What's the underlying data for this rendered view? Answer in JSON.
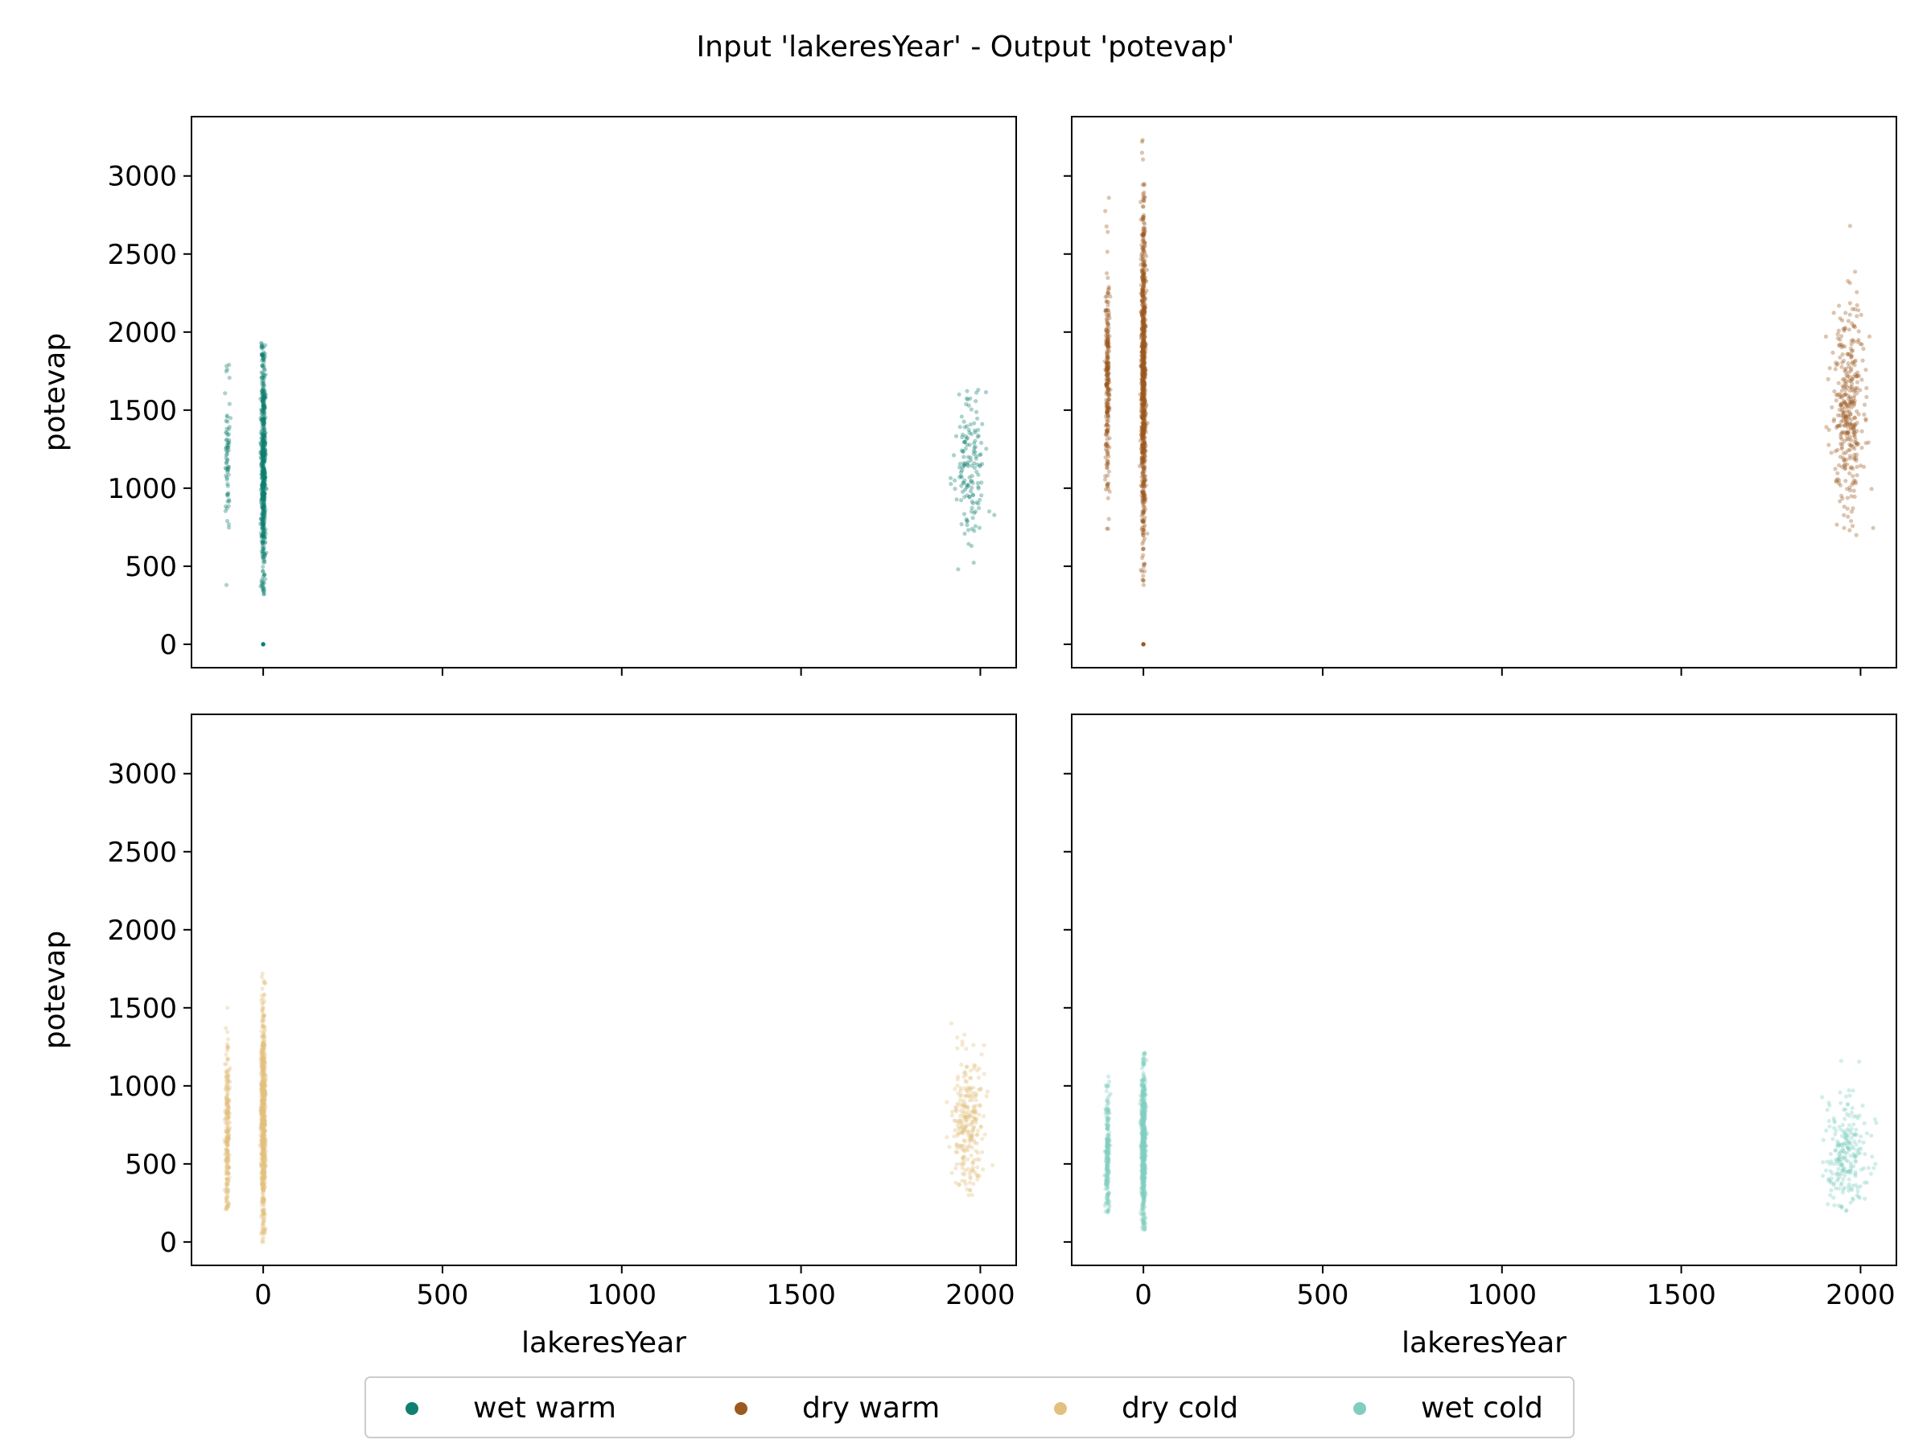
{
  "figure": {
    "title": "Input 'lakeresYear' - Output 'potevap'"
  },
  "chart_data": {
    "type": "scatter",
    "title": "Input 'lakeresYear' - Output 'potevap'",
    "xlabel": "lakeresYear",
    "ylabel": "potevap",
    "xlim": [
      -200,
      2100
    ],
    "ylim": [
      -150,
      3380
    ],
    "x_ticks": [
      0,
      500,
      1000,
      1500,
      2000
    ],
    "y_ticks": [
      0,
      500,
      1000,
      1500,
      2000,
      2500,
      3000
    ],
    "shared_x": true,
    "shared_y": true,
    "legend_position": "bottom-center",
    "panels": [
      {
        "series": "wet warm",
        "color": "#0f7f70",
        "clusters": [
          {
            "x": -100,
            "y_min": 380,
            "y_max": 1790,
            "y_center": 1200,
            "spread": 250,
            "count": 70,
            "x_jitter": 3
          },
          {
            "x": 0,
            "y_min": 320,
            "y_max": 1930,
            "y_center": 1150,
            "spread": 380,
            "count": 600,
            "x_jitter": 3
          },
          {
            "x": 0,
            "y_min": 0,
            "y_max": 0,
            "y_center": 0,
            "spread": 0,
            "count": 3,
            "x_jitter": 0
          },
          {
            "x": 1970,
            "y_min": 480,
            "y_max": 1630,
            "y_center": 1150,
            "spread": 240,
            "count": 150,
            "x_jitter": 22
          }
        ]
      },
      {
        "series": "dry warm",
        "color": "#9c5a1f",
        "clusters": [
          {
            "x": -100,
            "y_min": 740,
            "y_max": 2860,
            "y_center": 1700,
            "spread": 380,
            "count": 260,
            "x_jitter": 3
          },
          {
            "x": 0,
            "y_min": 380,
            "y_max": 3230,
            "y_center": 1700,
            "spread": 500,
            "count": 900,
            "x_jitter": 3
          },
          {
            "x": 0,
            "y_min": 0,
            "y_max": 0,
            "y_center": 0,
            "spread": 0,
            "count": 3,
            "x_jitter": 0
          },
          {
            "x": 1965,
            "y_min": 700,
            "y_max": 2680,
            "y_center": 1500,
            "spread": 320,
            "count": 350,
            "x_jitter": 22
          }
        ]
      },
      {
        "series": "dry cold",
        "color": "#e3c07e",
        "clusters": [
          {
            "x": -100,
            "y_min": 210,
            "y_max": 1500,
            "y_center": 700,
            "spread": 280,
            "count": 240,
            "x_jitter": 3
          },
          {
            "x": 0,
            "y_min": 0,
            "y_max": 1720,
            "y_center": 800,
            "spread": 340,
            "count": 700,
            "x_jitter": 3
          },
          {
            "x": 1965,
            "y_min": 300,
            "y_max": 1400,
            "y_center": 760,
            "spread": 200,
            "count": 260,
            "x_jitter": 22
          }
        ]
      },
      {
        "series": "wet cold",
        "color": "#82cdc0",
        "clusters": [
          {
            "x": -100,
            "y_min": 190,
            "y_max": 1060,
            "y_center": 600,
            "spread": 220,
            "count": 220,
            "x_jitter": 3
          },
          {
            "x": 0,
            "y_min": 80,
            "y_max": 1210,
            "y_center": 600,
            "spread": 260,
            "count": 600,
            "x_jitter": 3
          },
          {
            "x": 1960,
            "y_min": 200,
            "y_max": 1160,
            "y_center": 560,
            "spread": 180,
            "count": 230,
            "x_jitter": 30
          }
        ]
      }
    ],
    "legend": [
      {
        "label": "wet warm",
        "color": "#0f7f70"
      },
      {
        "label": "dry warm",
        "color": "#9c5a1f"
      },
      {
        "label": "dry cold",
        "color": "#e3c07e"
      },
      {
        "label": "wet cold",
        "color": "#82cdc0"
      }
    ]
  }
}
